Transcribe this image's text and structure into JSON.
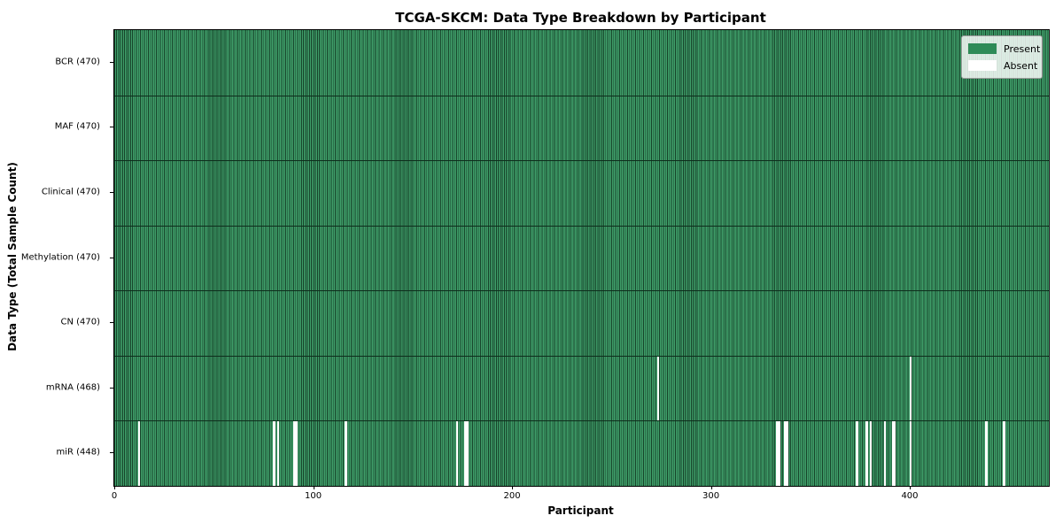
{
  "title": "TCGA-SKCM: Data Type Breakdown by Participant",
  "xlabel": "Participant",
  "ylabel": "Data Type (Total Sample Count)",
  "legend": {
    "present_label": "Present",
    "absent_label": "Absent"
  },
  "colors": {
    "present": "#2e8b57",
    "present_fill_light": "#3f9e69",
    "cell_edge_dark": "#17432a",
    "absent": "#ffffff",
    "legend_bg": "#e4e8e4"
  },
  "chart_data": {
    "type": "heatmap",
    "title": "TCGA-SKCM: Data Type Breakdown by Participant",
    "xlabel": "Participant",
    "ylabel": "Data Type (Total Sample Count)",
    "n_participants": 470,
    "x_ticks": [
      0,
      100,
      200,
      300,
      400
    ],
    "legend_entries": [
      "Present",
      "Absent"
    ],
    "legend_position": "upper right",
    "rows": [
      {
        "label": "BCR (470)",
        "present_count": 470,
        "absent_participants": []
      },
      {
        "label": "MAF (470)",
        "present_count": 470,
        "absent_participants": []
      },
      {
        "label": "Clinical (470)",
        "present_count": 470,
        "absent_participants": []
      },
      {
        "label": "Methylation (470)",
        "present_count": 470,
        "absent_participants": []
      },
      {
        "label": "CN (470)",
        "present_count": 470,
        "absent_participants": []
      },
      {
        "label": "mRNA (468)",
        "present_count": 468,
        "absent_participants": [
          273,
          400
        ]
      },
      {
        "label": "miR (448)",
        "present_count": 448,
        "absent_participants": [
          12,
          80,
          82,
          90,
          91,
          116,
          172,
          176,
          177,
          333,
          334,
          337,
          338,
          373,
          378,
          380,
          387,
          391,
          392,
          400,
          438,
          447
        ]
      }
    ]
  }
}
